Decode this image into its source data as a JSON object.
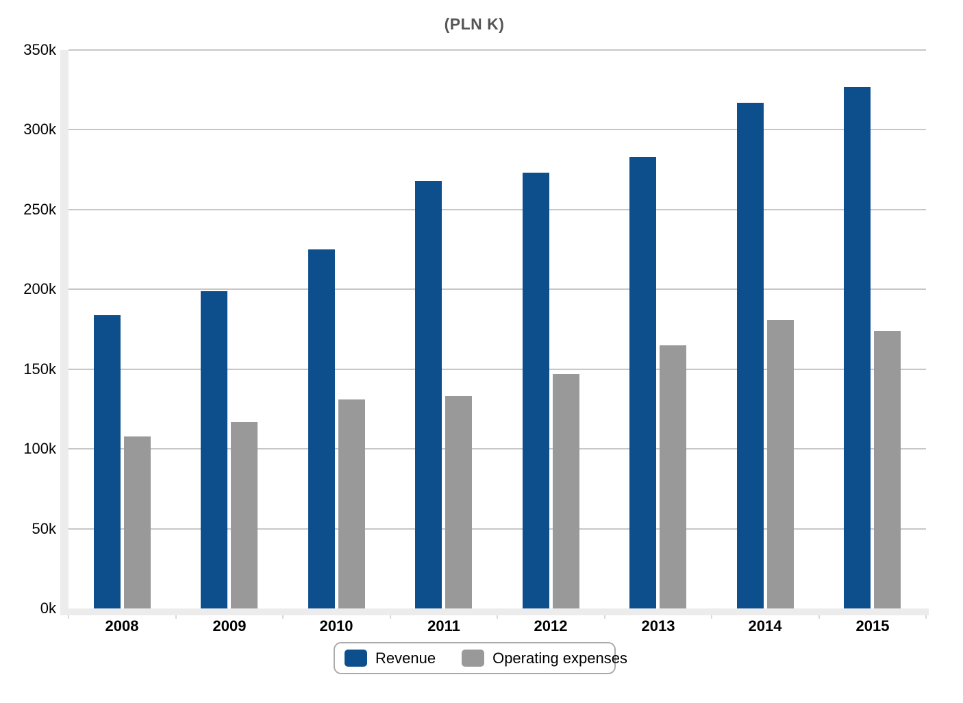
{
  "title": "(PLN K)",
  "colors": {
    "revenue": "#0d4e8c",
    "expenses": "#999999",
    "gridline": "#c7c7c7",
    "axis_band": "#ececec",
    "title_text": "#555555"
  },
  "chart_data": {
    "type": "bar",
    "title": "(PLN K)",
    "categories": [
      "2008",
      "2009",
      "2010",
      "2011",
      "2012",
      "2013",
      "2014",
      "2015"
    ],
    "series": [
      {
        "name": "Revenue",
        "color_key": "revenue",
        "values": [
          184,
          199,
          225,
          268,
          273,
          283,
          317,
          327
        ]
      },
      {
        "name": "Operating expenses",
        "color_key": "expenses",
        "values": [
          108,
          117,
          131,
          133,
          147,
          165,
          181,
          174
        ]
      }
    ],
    "xlabel": "",
    "ylabel": "",
    "ylim": [
      0,
      350
    ],
    "yticks": [
      {
        "value": 0,
        "label": "0k"
      },
      {
        "value": 50,
        "label": "50k"
      },
      {
        "value": 100,
        "label": "100k"
      },
      {
        "value": 150,
        "label": "150k"
      },
      {
        "value": 200,
        "label": "200k"
      },
      {
        "value": 250,
        "label": "250k"
      },
      {
        "value": 300,
        "label": "300k"
      },
      {
        "value": 350,
        "label": "350k"
      }
    ],
    "grid": true,
    "legend_position": "bottom"
  },
  "legend": {
    "items": [
      {
        "label": "Revenue",
        "color_key": "revenue"
      },
      {
        "label": "Operating expenses",
        "color_key": "expenses"
      }
    ]
  }
}
